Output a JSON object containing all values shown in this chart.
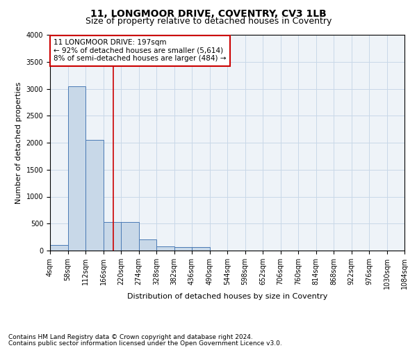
{
  "title1": "11, LONGMOOR DRIVE, COVENTRY, CV3 1LB",
  "title2": "Size of property relative to detached houses in Coventry",
  "xlabel": "Distribution of detached houses by size in Coventry",
  "ylabel": "Number of detached properties",
  "footnote1": "Contains HM Land Registry data © Crown copyright and database right 2024.",
  "footnote2": "Contains public sector information licensed under the Open Government Licence v3.0.",
  "annotation_line1": "11 LONGMOOR DRIVE: 197sqm",
  "annotation_line2": "← 92% of detached houses are smaller (5,614)",
  "annotation_line3": "8% of semi-detached houses are larger (484) →",
  "bin_edges": [
    4,
    58,
    112,
    166,
    220,
    274,
    328,
    382,
    436,
    490,
    544,
    598,
    652,
    706,
    760,
    814,
    868,
    922,
    976,
    1030,
    1084
  ],
  "bar_heights": [
    100,
    3050,
    2050,
    530,
    530,
    210,
    80,
    60,
    60,
    0,
    0,
    0,
    0,
    0,
    0,
    0,
    0,
    0,
    0,
    0
  ],
  "bar_color": "#c8d8e8",
  "bar_edge_color": "#4a7ab5",
  "vline_color": "#cc0000",
  "vline_x": 197,
  "ylim": [
    0,
    4000
  ],
  "yticks": [
    0,
    500,
    1000,
    1500,
    2000,
    2500,
    3000,
    3500,
    4000
  ],
  "grid_color": "#c8d8e8",
  "background_color": "#eef3f8",
  "annotation_box_color": "#ffffff",
  "annotation_box_edge": "#cc0000",
  "title1_fontsize": 10,
  "title2_fontsize": 9,
  "xlabel_fontsize": 8,
  "ylabel_fontsize": 8,
  "tick_fontsize": 7,
  "annotation_fontsize": 7.5,
  "footnote_fontsize": 6.5
}
